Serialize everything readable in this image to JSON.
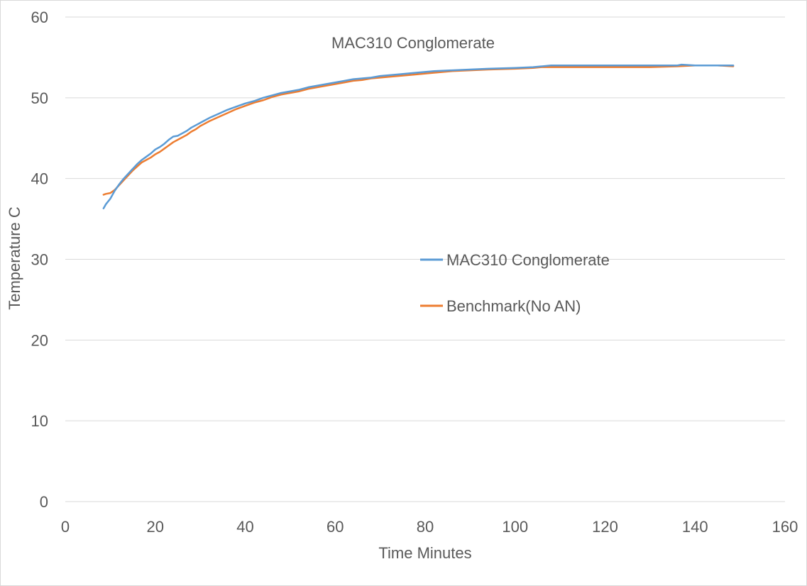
{
  "chart_data": {
    "type": "line",
    "title": "MAC310 Conglomerate",
    "xlabel": "Time Minutes",
    "ylabel": "Temperature C",
    "xlim": [
      0,
      160
    ],
    "ylim": [
      0,
      60
    ],
    "xticks": [
      0,
      20,
      40,
      60,
      80,
      100,
      120,
      140,
      160
    ],
    "yticks": [
      0,
      10,
      20,
      30,
      40,
      50,
      60
    ],
    "grid": "horizontal",
    "legend": "center-right",
    "series": [
      {
        "name": "MAC310 Conglomerate",
        "color": "#5b9bd5",
        "x": [
          8.5,
          9,
          10,
          11,
          12,
          13,
          14,
          15,
          16,
          17,
          18,
          19,
          20,
          21,
          22,
          23,
          24,
          25,
          26,
          27,
          28,
          29,
          30,
          32,
          34,
          36,
          38,
          40,
          42,
          44,
          46,
          48,
          50,
          52,
          54,
          56,
          58,
          60,
          62,
          64,
          66,
          68,
          70,
          74,
          78,
          82,
          86,
          90,
          94,
          100,
          104,
          106,
          108,
          112,
          120,
          130,
          136,
          137,
          140,
          142,
          145,
          148.5
        ],
        "y": [
          36.3,
          36.8,
          37.5,
          38.5,
          39.3,
          40.0,
          40.6,
          41.2,
          41.8,
          42.3,
          42.7,
          43.1,
          43.6,
          43.9,
          44.3,
          44.8,
          45.2,
          45.3,
          45.6,
          45.9,
          46.3,
          46.6,
          46.9,
          47.5,
          48.0,
          48.5,
          48.9,
          49.3,
          49.6,
          50.0,
          50.3,
          50.6,
          50.8,
          51.0,
          51.3,
          51.5,
          51.7,
          51.9,
          52.1,
          52.3,
          52.4,
          52.5,
          52.7,
          52.9,
          53.1,
          53.3,
          53.4,
          53.5,
          53.6,
          53.7,
          53.8,
          53.9,
          54.0,
          54.0,
          54.0,
          54.0,
          54.0,
          54.1,
          54.0,
          54.0,
          54.0,
          54.0
        ]
      },
      {
        "name": "Benchmark(No AN)",
        "color": "#ed7d31",
        "x": [
          8.5,
          9,
          10,
          11,
          12,
          13,
          14,
          15,
          16,
          17,
          18,
          19,
          20,
          21,
          22,
          23,
          24,
          25,
          26,
          27,
          28,
          29,
          30,
          32,
          34,
          36,
          38,
          40,
          42,
          44,
          46,
          48,
          50,
          52,
          54,
          56,
          58,
          60,
          62,
          64,
          66,
          68,
          70,
          74,
          78,
          82,
          86,
          90,
          94,
          100,
          104,
          106,
          108,
          112,
          120,
          130,
          136,
          140,
          142,
          145,
          148.5
        ],
        "y": [
          38.0,
          38.1,
          38.2,
          38.6,
          39.2,
          39.8,
          40.4,
          41.0,
          41.5,
          42.0,
          42.3,
          42.6,
          43.0,
          43.3,
          43.7,
          44.1,
          44.5,
          44.8,
          45.1,
          45.4,
          45.8,
          46.1,
          46.5,
          47.1,
          47.6,
          48.1,
          48.6,
          49.0,
          49.4,
          49.7,
          50.1,
          50.4,
          50.6,
          50.8,
          51.1,
          51.3,
          51.5,
          51.7,
          51.9,
          52.1,
          52.2,
          52.4,
          52.5,
          52.7,
          52.9,
          53.1,
          53.3,
          53.4,
          53.5,
          53.6,
          53.7,
          53.8,
          53.8,
          53.8,
          53.8,
          53.8,
          53.9,
          54.0,
          54.0,
          54.0,
          53.9
        ]
      }
    ]
  }
}
